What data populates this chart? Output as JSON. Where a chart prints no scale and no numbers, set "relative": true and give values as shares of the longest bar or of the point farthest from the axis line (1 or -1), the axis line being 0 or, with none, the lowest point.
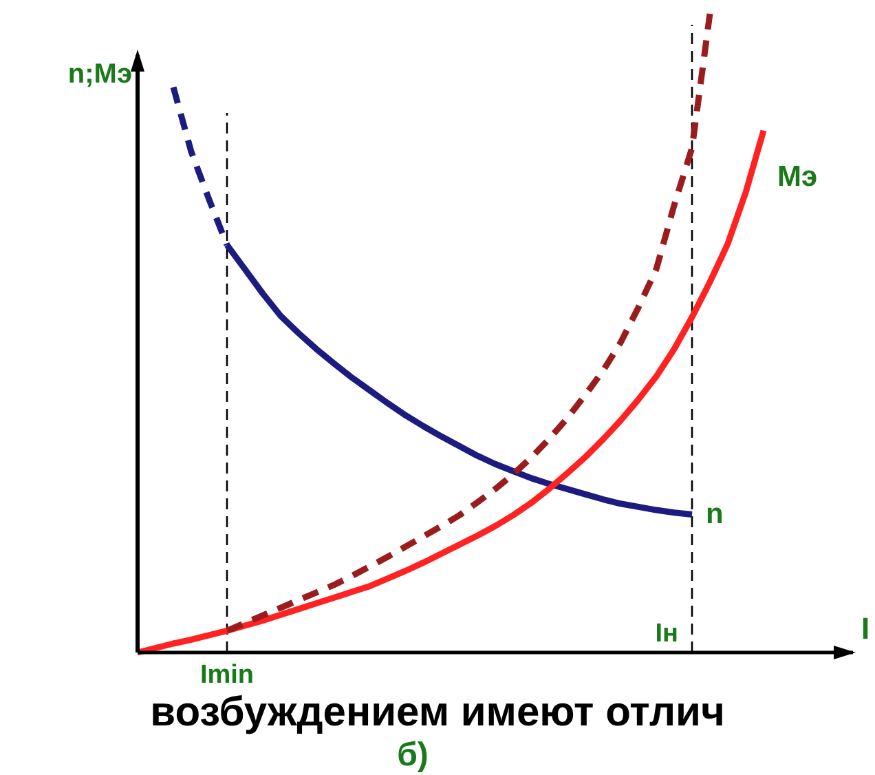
{
  "chart_data": {
    "type": "line",
    "relative": true,
    "xlabel": "I",
    "ylabel": "n;Mэ",
    "categories": [
      null,
      null,
      null,
      null,
      null,
      null,
      null,
      null,
      null,
      null,
      null,
      null,
      null,
      null,
      null,
      null,
      null,
      null,
      null,
      null,
      null,
      null,
      null,
      null,
      null,
      null,
      null,
      null,
      null,
      null,
      null,
      null,
      null,
      null,
      null,
      null,
      null,
      null,
      null,
      null,
      null
    ],
    "series": [
      {
        "color": "#1c1c80",
        "line_style": "dashed",
        "values": [
          null,
          null,
          0.885,
          0.784,
          0.709,
          0.638,
          null,
          null,
          null,
          null,
          null,
          null,
          null,
          null,
          null,
          null,
          null,
          null,
          null,
          null,
          null,
          null,
          null,
          null,
          null,
          null,
          null,
          null,
          null,
          null,
          null,
          null,
          null,
          null,
          null,
          null,
          null,
          null,
          null,
          null,
          null
        ]
      },
      {
        "name": "n",
        "color": "#1c1c80",
        "line_style": "solid",
        "values": [
          null,
          null,
          null,
          null,
          null,
          0.638,
          0.6,
          0.562,
          0.527,
          0.5,
          0.475,
          0.452,
          0.43,
          0.41,
          0.39,
          0.371,
          0.354,
          0.338,
          0.323,
          0.308,
          0.295,
          0.284,
          0.273,
          0.264,
          0.256,
          0.248,
          0.24,
          0.233,
          0.228,
          0.223,
          0.219,
          0.216,
          null,
          null,
          null,
          null,
          null,
          null,
          null,
          null,
          null
        ]
      },
      {
        "name": "Mэ",
        "color": "#ff2222",
        "line_style": "solid",
        "values": [
          0,
          0.007,
          0.014,
          0.02,
          0.027,
          0.034,
          0.042,
          0.05,
          0.059,
          0.068,
          0.077,
          0.086,
          0.095,
          0.104,
          0.116,
          0.128,
          0.141,
          0.155,
          0.169,
          0.183,
          0.198,
          0.215,
          0.234,
          0.256,
          0.28,
          0.305,
          0.333,
          0.363,
          0.396,
          0.432,
          0.475,
          0.525,
          0.58,
          0.64,
          0.72,
          0.817,
          null,
          null,
          null,
          null,
          null
        ]
      },
      {
        "color": "#9b1c1c",
        "line_style": "dashed",
        "values": [
          null,
          null,
          null,
          null,
          null,
          0.034,
          0.046,
          0.058,
          0.07,
          0.082,
          0.094,
          0.106,
          0.12,
          0.135,
          0.15,
          0.166,
          0.182,
          0.198,
          0.215,
          0.235,
          0.256,
          0.279,
          0.305,
          0.334,
          0.366,
          0.402,
          0.44,
          0.485,
          0.54,
          0.6,
          0.7,
          0.79,
          1,
          null,
          null,
          null,
          null,
          null,
          null,
          null,
          null
        ]
      }
    ],
    "annotations": [
      "Imin",
      "Iн",
      "возбуждением имеют отлич",
      "б)"
    ]
  }
}
